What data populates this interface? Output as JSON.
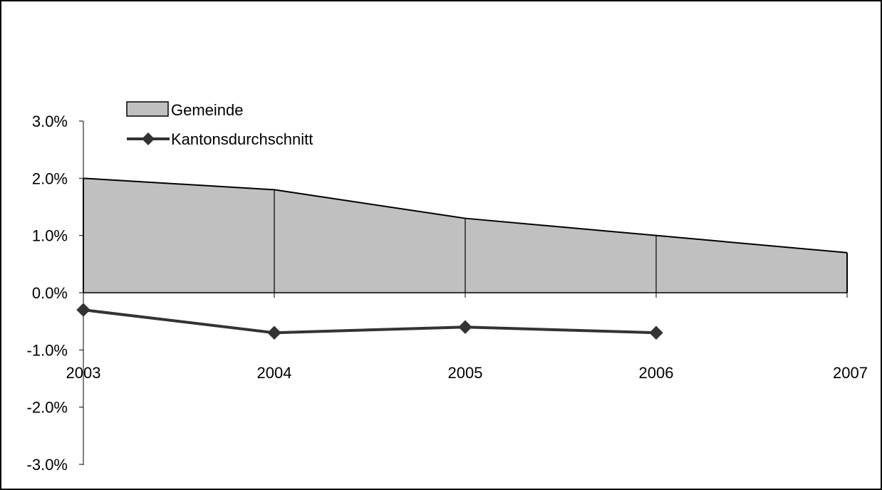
{
  "chart_data": {
    "type": "area",
    "categories": [
      "2003",
      "2004",
      "2005",
      "2006",
      "2007"
    ],
    "series": [
      {
        "name": "Gemeinde",
        "type": "area",
        "values": [
          2.0,
          1.8,
          1.3,
          1.0,
          0.7
        ],
        "fill_color": "#c0c0c0",
        "line_color": "#000000"
      },
      {
        "name": "Kantonsdurchschnitt",
        "type": "line",
        "marker": "diamond",
        "values": [
          -0.3,
          -0.7,
          -0.6,
          -0.7,
          null
        ],
        "color": "#333333"
      }
    ],
    "ylim": [
      -3.0,
      3.0
    ],
    "yticks": [
      3.0,
      2.0,
      1.0,
      0.0,
      -1.0,
      -2.0,
      -3.0
    ],
    "ytick_labels": [
      "3.0%",
      "2.0%",
      "1.0%",
      "0.0%",
      "-1.0%",
      "-2.0%",
      "-3.0%"
    ],
    "grid": false,
    "legend_position": "top-left"
  }
}
